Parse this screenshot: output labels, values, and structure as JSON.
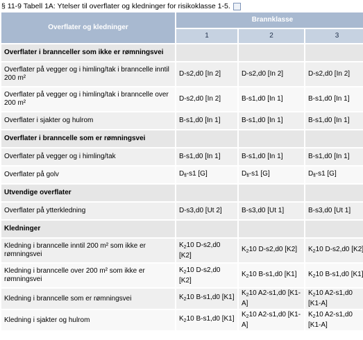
{
  "title": "§ 11-9 Tabell 1A: Ytelser til overflater og kledninger for risikoklasse 1-5.",
  "header": {
    "first": "Overflater og kledninger",
    "group": "Brannklasse",
    "columns": [
      "1",
      "2",
      "3"
    ]
  },
  "rows": [
    {
      "section": "Overflater i brannceller som ikke er rømningsvei"
    },
    {
      "cells": [
        "Overflater på vegger og i himling/tak i branncelle inntil 200 m²",
        "D-s2,d0 [In 2]",
        "D-s2,d0 [In 2]",
        "D-s2,d0 [In 2]"
      ]
    },
    {
      "cells": [
        "Overflater på vegger og i himling/tak i branncelle over 200 m²",
        "D-s2,d0 [In 2]",
        "B-s1,d0 [In 1]",
        "B-s1,d0 [In 1]"
      ]
    },
    {
      "cells": [
        "Overflater i sjakter og hulrom",
        "B-s1,d0 [In 1]",
        "B-s1,d0 [In 1]",
        "B-s1,d0 [In 1]"
      ]
    },
    {
      "section": "Overflater i branncelle som er rømningsvei"
    },
    {
      "cells": [
        "Overflater på vegger og i himling/tak",
        "B-s1,d0 [In 1]",
        "B-s1,d0 [In 1]",
        "B-s1,d0 [In 1]"
      ]
    },
    {
      "cells": [
        "Overflater på golv",
        [
          "D",
          "fl",
          "-s1 [G]"
        ],
        [
          "D",
          "fl",
          "-s1 [G]"
        ],
        [
          "D",
          "fl",
          "-s1 [G]"
        ]
      ]
    },
    {
      "section": "Utvendige overflater"
    },
    {
      "cells": [
        "Overflater på ytterkledning",
        "D-s3,d0 [Ut 2]",
        "B-s3,d0 [Ut 1]",
        "B-s3,d0 [Ut 1]"
      ]
    },
    {
      "section": "Kledninger"
    },
    {
      "cells": [
        "Kledning i branncelle inntil 200 m² som ikke er rømningsvei",
        [
          "K",
          "2",
          "10 D-s2,d0 [K2]"
        ],
        [
          "K",
          "2",
          "10 D-s2,d0 [K2]"
        ],
        [
          "K",
          "2",
          "10 D-s2,d0 [K2]"
        ]
      ]
    },
    {
      "cells": [
        "Kledning i branncelle over 200 m² som ikke er rømningsvei",
        [
          "K",
          "2",
          "10 D-s2,d0 [K2]"
        ],
        [
          "K",
          "2",
          "10 B-s1,d0 [K1]"
        ],
        [
          "K",
          "2",
          "10 B-s1,d0 [K1]"
        ]
      ]
    },
    {
      "cells": [
        "Kledning i branncelle som er rømningsvei",
        [
          "K",
          "2",
          "10 B-s1,d0 [K1]"
        ],
        [
          "K",
          "2",
          "10 A2-s1,d0 [K1-A]"
        ],
        [
          "K",
          "2",
          "10 A2-s1,d0 [K1-A]"
        ]
      ]
    },
    {
      "cells": [
        "Kledning i sjakter og hulrom",
        [
          "K",
          "2",
          "10 B-s1,d0 [K1]"
        ],
        [
          "K",
          "2",
          "10 A2-s1,d0 [K1-A]"
        ],
        [
          "K",
          "2",
          "10 A2-s1,d0 [K1-A]"
        ]
      ]
    }
  ]
}
